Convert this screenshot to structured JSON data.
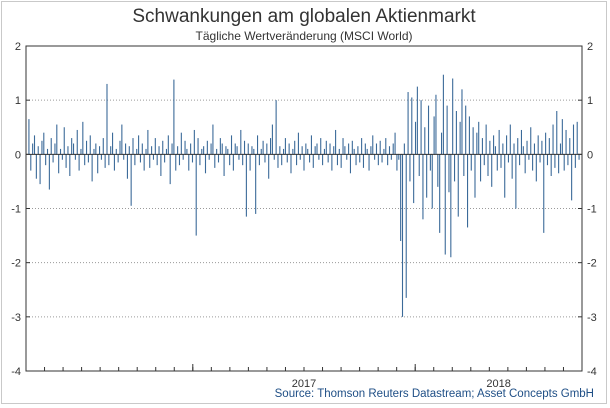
{
  "chart_data": {
    "type": "bar",
    "title": "Schwankungen am globalen Aktienmarkt",
    "subtitle": "Tägliche Wertveränderung (MSCI World)",
    "source": "Source: Thomson Reuters Datastream; Asset Concepts GmbH",
    "ylim": [
      -4,
      2
    ],
    "yticks": [
      2,
      1,
      0,
      -1,
      -2,
      -3,
      -4
    ],
    "ytick_labels": [
      "2",
      "1",
      "0",
      "-1",
      "-2",
      "-3",
      "-4"
    ],
    "xlabels": [
      "2017",
      "2018"
    ],
    "x_start": "2016-04",
    "x_end": "2018-10",
    "gridlines": true,
    "colors": {
      "bars": "#3b6a99",
      "grid": "#9a9a9a",
      "axis": "#333333"
    },
    "values": [
      0.65,
      -0.3,
      0.2,
      0.35,
      -0.45,
      0.15,
      -0.55,
      0.25,
      0.4,
      -0.2,
      0.1,
      -0.65,
      0.3,
      -0.15,
      0.2,
      0.55,
      -0.35,
      0.1,
      -0.1,
      0.5,
      -0.25,
      0.15,
      -0.4,
      0.3,
      0.2,
      -0.1,
      0.45,
      -0.3,
      0.1,
      0.6,
      -0.2,
      0.25,
      -0.15,
      0.35,
      -0.5,
      0.1,
      0.2,
      -0.35,
      0.15,
      -0.1,
      0.3,
      -0.25,
      1.3,
      -0.2,
      0.15,
      0.4,
      -0.3,
      0.1,
      -0.15,
      0.25,
      0.55,
      -0.1,
      0.2,
      -0.45,
      0.15,
      -0.95,
      0.3,
      -0.2,
      0.1,
      0.35,
      -0.15,
      0.2,
      -0.3,
      0.1,
      0.45,
      -0.25,
      0.15,
      -0.1,
      0.3,
      -0.2,
      0.15,
      -0.4,
      0.25,
      -0.15,
      0.1,
      0.35,
      -0.55,
      0.2,
      1.38,
      -0.3,
      0.15,
      -0.2,
      0.4,
      -0.1,
      0.25,
      0.1,
      -0.3,
      0.2,
      -0.15,
      0.45,
      -1.5,
      0.3,
      -0.2,
      0.1,
      0.15,
      -0.35,
      0.25,
      -0.1,
      0.2,
      0.55,
      -0.25,
      0.1,
      -0.15,
      0.3,
      0.2,
      -0.4,
      0.15,
      0.1,
      -0.2,
      0.35,
      -0.3,
      0.2,
      0.15,
      -0.1,
      0.45,
      -0.2,
      0.25,
      -1.15,
      0.2,
      -0.3,
      0.15,
      0.1,
      -1.1,
      0.35,
      -0.2,
      0.1,
      0.25,
      -0.15,
      0.2,
      -0.45,
      0.3,
      0.55,
      -0.1,
      1.0,
      -0.25,
      0.15,
      -0.2,
      0.1,
      0.3,
      -0.15,
      0.2,
      -0.35,
      0.1,
      0.25,
      -0.2,
      0.4,
      -0.1,
      0.15,
      -0.3,
      0.2,
      0.1,
      -0.15,
      0.35,
      -0.25,
      0.15,
      0.2,
      -0.1,
      0.3,
      -0.2,
      0.1,
      0.25,
      -0.15,
      0.2,
      -0.3,
      0.15,
      0.45,
      -0.2,
      0.1,
      -0.25,
      0.3,
      0.15,
      -0.1,
      0.2,
      -0.35,
      0.25,
      0.1,
      -0.2,
      0.15,
      -0.15,
      0.3,
      -0.25,
      0.2,
      0.1,
      -0.3,
      0.15,
      0.35,
      -0.1,
      0.2,
      -0.2,
      0.25,
      -0.15,
      0.1,
      0.3,
      -0.2,
      0.15,
      -0.1,
      0.2,
      0.4,
      -0.3,
      -0.1,
      -1.6,
      -3.0,
      0.2,
      -2.65,
      1.15,
      -0.5,
      1.05,
      -0.9,
      0.6,
      1.25,
      -0.4,
      1.0,
      -1.2,
      0.5,
      -0.8,
      0.9,
      -0.3,
      -1.0,
      0.7,
      1.1,
      -0.6,
      -1.45,
      0.4,
      1.47,
      -1.85,
      0.9,
      -0.7,
      -1.9,
      1.4,
      -0.5,
      0.8,
      -1.15,
      0.6,
      1.2,
      -0.4,
      0.9,
      -1.35,
      0.7,
      -0.3,
      0.5,
      -0.8,
      0.4,
      0.6,
      -0.5,
      0.3,
      -0.2,
      0.55,
      -0.4,
      0.25,
      -0.6,
      0.35,
      0.15,
      -0.3,
      0.45,
      -0.25,
      0.2,
      -0.8,
      0.35,
      -0.15,
      0.55,
      -0.45,
      0.2,
      -1.0,
      0.3,
      -0.2,
      0.45,
      0.15,
      -0.35,
      0.25,
      -0.1,
      0.5,
      -0.3,
      0.2,
      -0.5,
      0.35,
      -0.15,
      0.25,
      -1.45,
      0.4,
      -0.2,
      0.3,
      -0.4,
      0.55,
      -0.25,
      0.8,
      -0.35,
      0.2,
      0.65,
      -0.3,
      0.45,
      -0.2,
      0.3,
      -0.85,
      0.55,
      -0.25,
      0.6,
      -0.1
    ]
  }
}
